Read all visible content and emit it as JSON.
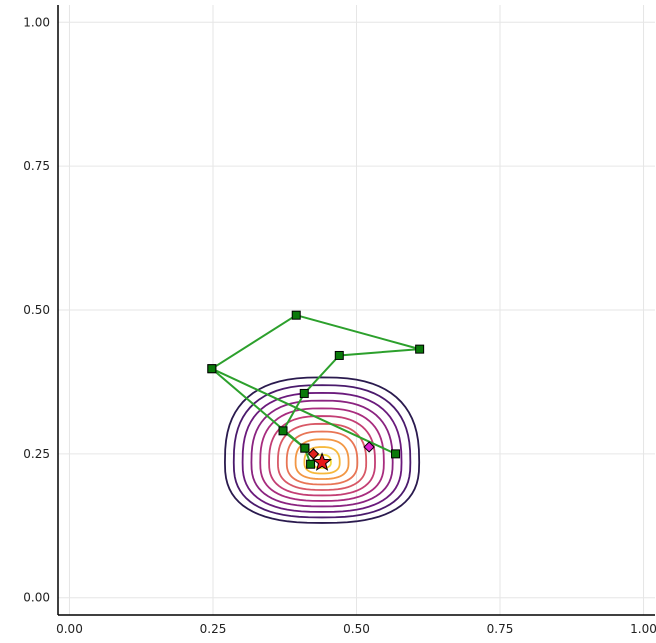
{
  "chart_data": {
    "type": "line",
    "title": "",
    "xlabel": "",
    "ylabel": "",
    "xlim": [
      -0.02,
      1.02
    ],
    "ylim": [
      -0.03,
      1.03
    ],
    "grid": true,
    "legend": "none",
    "x_ticks": [
      0.0,
      0.25,
      0.5,
      0.75,
      1.0
    ],
    "x_tick_labels": [
      "0.00",
      "0.25",
      "0.50",
      "0.75",
      "1.00"
    ],
    "y_ticks": [
      0.0,
      0.25,
      0.5,
      0.75,
      1.0
    ],
    "y_tick_labels": [
      "0.00",
      "0.25",
      "0.50",
      "0.75",
      "1.00"
    ],
    "contour": {
      "center": [
        0.44,
        0.235
      ],
      "levels": 11,
      "colors": [
        "#2a1a4e",
        "#4a1a6c",
        "#6a1a7c",
        "#8a2380",
        "#a82c7e",
        "#c33e74",
        "#d85866",
        "#e87555",
        "#f29745",
        "#f6b93c",
        "#f3d93e"
      ]
    },
    "path": {
      "color": "#2ca02c",
      "marker": "square",
      "marker_color": "#0a7a0a",
      "points": [
        [
          0.248,
          0.398
        ],
        [
          0.395,
          0.491
        ],
        [
          0.61,
          0.432
        ],
        [
          0.47,
          0.421
        ],
        [
          0.409,
          0.355
        ],
        [
          0.372,
          0.29
        ],
        [
          0.41,
          0.26
        ],
        [
          0.42,
          0.232
        ],
        [
          0.41,
          0.26
        ],
        [
          0.248,
          0.398
        ],
        [
          0.568,
          0.25
        ]
      ]
    },
    "special_points": [
      {
        "x": 0.522,
        "y": 0.262,
        "marker": "diamond",
        "color": "#e020d0"
      },
      {
        "x": 0.425,
        "y": 0.25,
        "marker": "diamond",
        "color": "#e02020"
      },
      {
        "x": 0.44,
        "y": 0.235,
        "marker": "star",
        "color": "#e81818"
      }
    ]
  }
}
